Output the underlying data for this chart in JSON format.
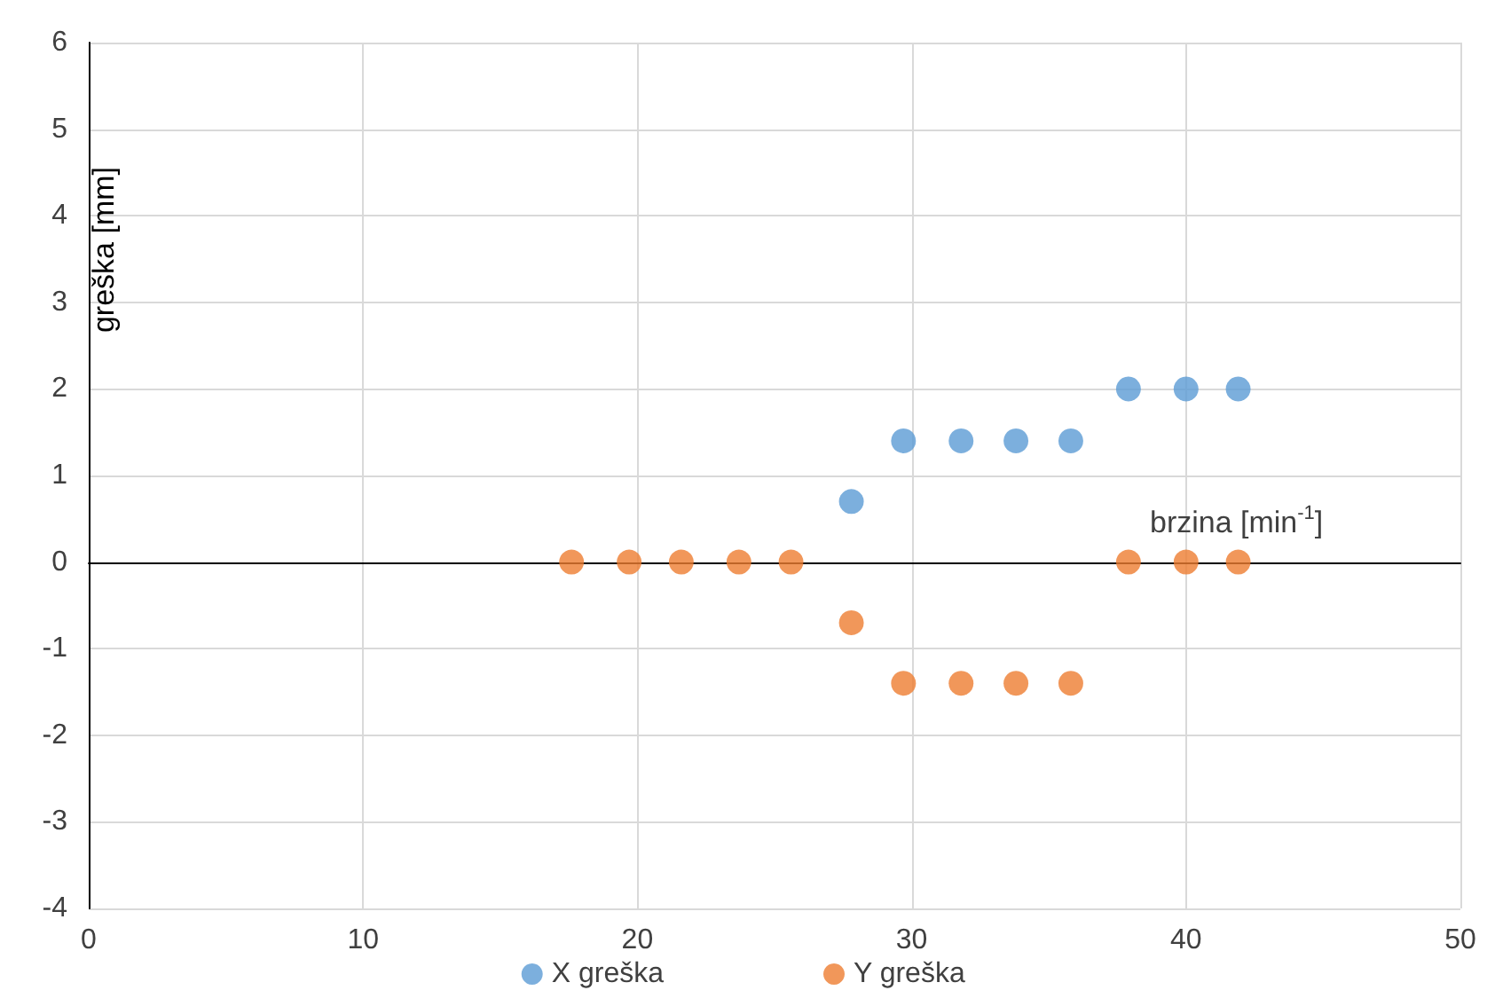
{
  "chart_data": {
    "type": "scatter",
    "xlabel": "brzina [min$^{-1}$]",
    "ylabel": "greška [mm]",
    "x": [
      17.6,
      19.7,
      21.6,
      23.7,
      25.6,
      27.8,
      29.7,
      31.8,
      33.8,
      35.8,
      37.9,
      40.0,
      41.9
    ],
    "series": [
      {
        "name": "X greška",
        "color": "#5b9bd5",
        "values": [
          null,
          null,
          null,
          null,
          null,
          0.7,
          1.4,
          1.4,
          1.4,
          1.4,
          2.0,
          2.0,
          2.0
        ]
      },
      {
        "name": "Y greška",
        "color": "#ed7d31",
        "values": [
          0,
          0,
          0,
          0,
          0,
          -0.7,
          -1.4,
          -1.4,
          -1.4,
          -1.4,
          0,
          0,
          0
        ]
      }
    ],
    "xlim": [
      0,
      50
    ],
    "xticks": [
      0,
      10,
      20,
      30,
      40,
      50
    ],
    "ylim": [
      -4,
      6
    ],
    "yticks": [
      -4,
      -3,
      -2,
      -1,
      0,
      1,
      2,
      3,
      4,
      5,
      6
    ],
    "grid": true,
    "legend": "bottom",
    "marker": "circle"
  }
}
